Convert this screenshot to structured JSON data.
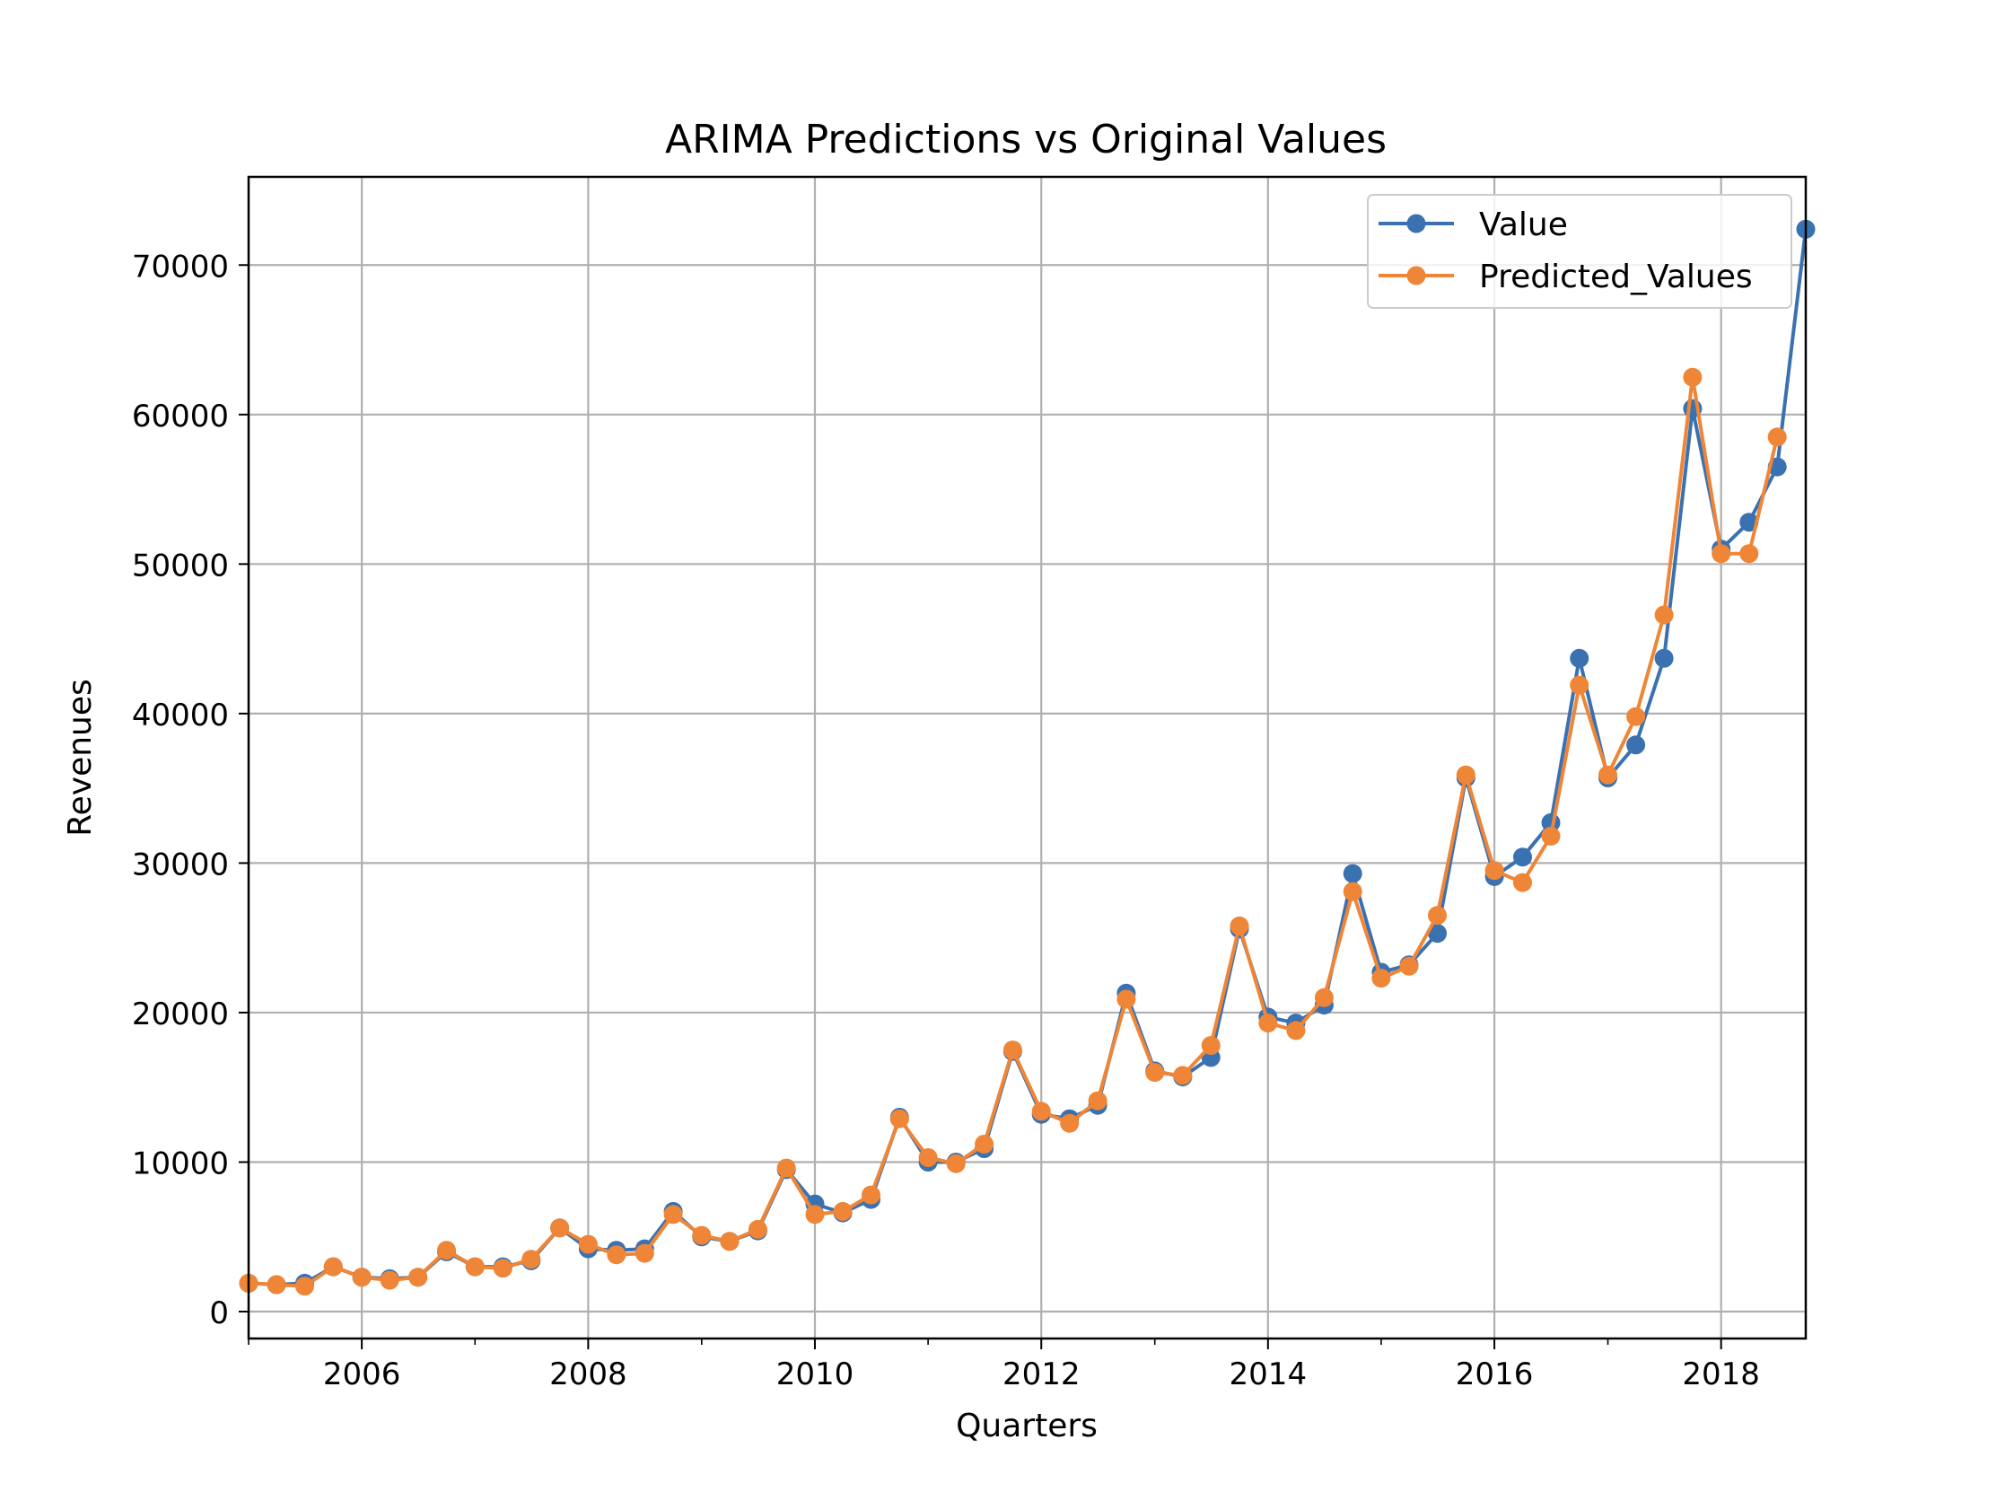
{
  "chart_data": {
    "type": "line",
    "title": "ARIMA Predictions vs Original Values",
    "xlabel": "Quarters",
    "ylabel": "Revenues",
    "x": [
      "2005-01-01",
      "2005-04-01",
      "2005-07-01",
      "2005-10-01",
      "2006-01-01",
      "2006-04-01",
      "2006-07-01",
      "2006-10-01",
      "2007-01-01",
      "2007-04-01",
      "2007-07-01",
      "2007-10-01",
      "2008-01-01",
      "2008-04-01",
      "2008-07-01",
      "2008-10-01",
      "2009-01-01",
      "2009-04-01",
      "2009-07-01",
      "2009-10-01",
      "2010-01-01",
      "2010-04-01",
      "2010-07-01",
      "2010-10-01",
      "2011-01-01",
      "2011-04-01",
      "2011-07-01",
      "2011-10-01",
      "2012-01-01",
      "2012-04-01",
      "2012-07-01",
      "2012-10-01",
      "2013-01-01",
      "2013-04-01",
      "2013-07-01",
      "2013-10-01",
      "2014-01-01",
      "2014-04-01",
      "2014-07-01",
      "2014-10-01",
      "2015-01-01",
      "2015-04-01",
      "2015-07-01",
      "2015-10-01",
      "2016-01-01",
      "2016-04-01",
      "2016-07-01",
      "2016-10-01",
      "2017-01-01",
      "2017-04-01",
      "2017-07-01",
      "2017-10-01",
      "2018-01-01",
      "2018-04-01",
      "2018-07-01",
      "2018-10-01"
    ],
    "series": [
      {
        "name": "Value",
        "color": "#3a71b1",
        "values": [
          1900,
          1800,
          1900,
          3000,
          2300,
          2200,
          2300,
          4000,
          3000,
          3000,
          3400,
          5600,
          4200,
          4100,
          4200,
          6700,
          5000,
          4700,
          5400,
          9500,
          7200,
          6600,
          7500,
          13000,
          10000,
          10000,
          10900,
          17400,
          13200,
          12900,
          13800,
          21300,
          16100,
          15700,
          17000,
          25600,
          19700,
          19300,
          20500,
          29300,
          22700,
          23200,
          25300,
          35700,
          29100,
          30400,
          32700,
          43700,
          35700,
          37900,
          43700,
          60400,
          51000,
          52800,
          56500,
          72400
        ]
      },
      {
        "name": "Predicted_Values",
        "color": "#ef8536",
        "values": [
          1900,
          1800,
          1700,
          3000,
          2300,
          2100,
          2300,
          4100,
          3000,
          2900,
          3500,
          5600,
          4500,
          3800,
          3900,
          6500,
          5100,
          4700,
          5500,
          9600,
          6500,
          6700,
          7800,
          12900,
          10300,
          9900,
          11200,
          17500,
          13400,
          12600,
          14100,
          20900,
          16000,
          15800,
          17800,
          25800,
          19300,
          18800,
          21000,
          28100,
          22300,
          23100,
          26500,
          35900,
          29500,
          28700,
          31800,
          41900,
          35900,
          39800,
          46600,
          62500,
          50700,
          50700,
          58500,
          null
        ]
      }
    ],
    "xlim": [
      "2005-01-01",
      "2018-10-01"
    ],
    "ylim": [
      -1800,
      75900
    ],
    "y_ticks": [
      0,
      10000,
      20000,
      30000,
      40000,
      50000,
      60000,
      70000
    ],
    "x_ticks": [
      "2006",
      "2008",
      "2010",
      "2012",
      "2014",
      "2016",
      "2018"
    ],
    "grid": true,
    "legend": "top-right"
  }
}
